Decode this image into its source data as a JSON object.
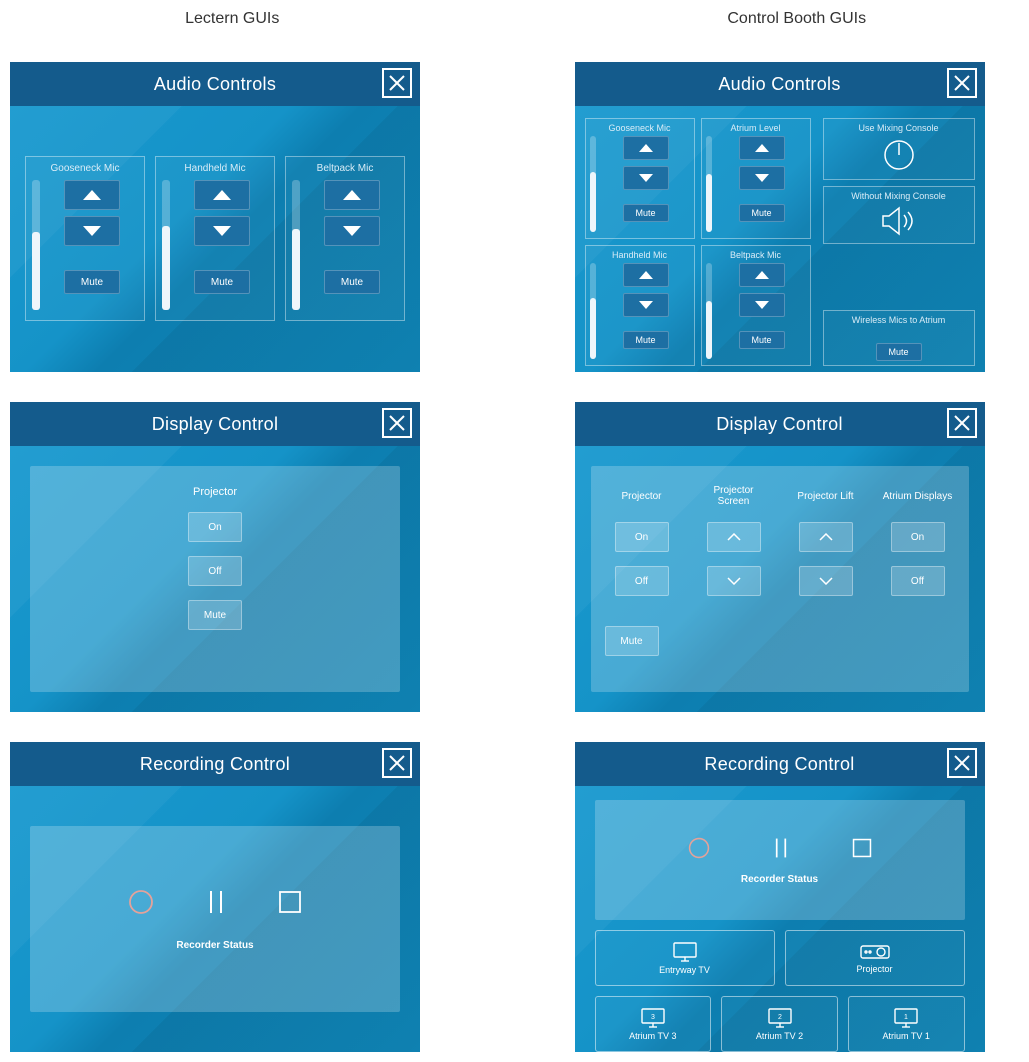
{
  "columns": {
    "left": "Lectern GUIs",
    "right": "Control Booth GUIs"
  },
  "colors": {
    "header_bg": "#145b8c",
    "panel_bg_1": "#1a9ad0",
    "panel_bg_2": "#0d7eb0",
    "button_bg": "#1d6fa3",
    "text": "#ffffff",
    "record_stroke": "#e4a29a"
  },
  "lectern": {
    "audio": {
      "title": "Audio Controls",
      "channels": [
        {
          "label": "Gooseneck Mic",
          "level_pct": 60,
          "mute": "Mute"
        },
        {
          "label": "Handheld Mic",
          "level_pct": 65,
          "mute": "Mute"
        },
        {
          "label": "Beltpack Mic",
          "level_pct": 62,
          "mute": "Mute"
        }
      ]
    },
    "display": {
      "title": "Display Control",
      "projector_label": "Projector",
      "on": "On",
      "off": "Off",
      "mute": "Mute"
    },
    "recording": {
      "title": "Recording Control",
      "status": "Recorder Status"
    }
  },
  "booth": {
    "audio": {
      "title": "Audio Controls",
      "channels_top": [
        {
          "label": "Gooseneck Mic",
          "level_pct": 62,
          "mute": "Mute"
        },
        {
          "label": "Atrium Level",
          "level_pct": 60,
          "mute": "Mute"
        }
      ],
      "channels_bottom": [
        {
          "label": "Handheld Mic",
          "level_pct": 64,
          "mute": "Mute"
        },
        {
          "label": "Beltpack Mic",
          "level_pct": 60,
          "mute": "Mute"
        }
      ],
      "side": {
        "use_mixing": "Use Mixing Console",
        "without_mixing": "Without Mixing Console",
        "wireless_label": "Wireless Mics to Atrium",
        "wireless_mute": "Mute"
      }
    },
    "display": {
      "title": "Display Control",
      "cols": [
        "Projector",
        "Projector Screen",
        "Projector Lift",
        "Atrium Displays"
      ],
      "on": "On",
      "off": "Off",
      "mute": "Mute"
    },
    "recording": {
      "title": "Recording Control",
      "status": "Recorder Status",
      "dest_top": [
        {
          "label": "Entryway TV"
        },
        {
          "label": "Projector"
        }
      ],
      "dest_bottom": [
        {
          "label": "Atrium TV 3",
          "badge": "3"
        },
        {
          "label": "Atrium TV 2",
          "badge": "2"
        },
        {
          "label": "Atrium TV 1",
          "badge": "1"
        }
      ]
    }
  }
}
